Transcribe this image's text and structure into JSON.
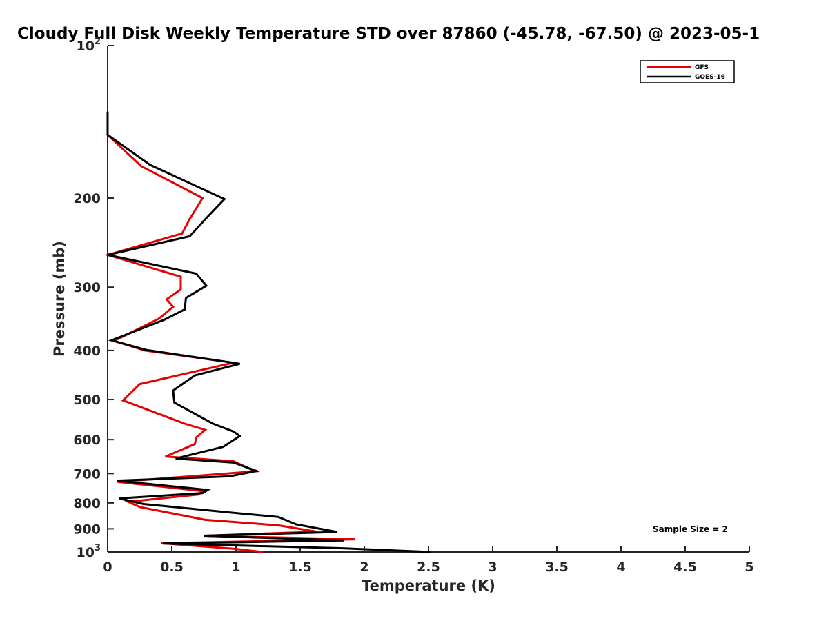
{
  "chart_data": {
    "type": "line",
    "title": "Cloudy Full Disk Weekly Temperature STD over 87860 (-45.78, -67.50) @ 2023-05-1",
    "xlabel": "Temperature (K)",
    "ylabel": "Pressure (mb)",
    "xlim": [
      0,
      5
    ],
    "ylim": [
      100,
      1000
    ],
    "y_scale": "log",
    "y_reversed": true,
    "grid": false,
    "x_ticks": [
      0,
      0.5,
      1,
      1.5,
      2,
      2.5,
      3,
      3.5,
      4,
      4.5,
      5
    ],
    "x_tick_labels": [
      "0",
      "0.5",
      "1",
      "1.5",
      "2",
      "2.5",
      "3",
      "3.5",
      "4",
      "4.5",
      "5"
    ],
    "y_ticks": [
      100,
      200,
      300,
      400,
      500,
      600,
      700,
      800,
      900,
      1000
    ],
    "y_tick_labels": [
      {
        "base": "10",
        "sup": "2"
      },
      {
        "base": "200",
        "sup": ""
      },
      {
        "base": "300",
        "sup": ""
      },
      {
        "base": "400",
        "sup": ""
      },
      {
        "base": "500",
        "sup": ""
      },
      {
        "base": "600",
        "sup": ""
      },
      {
        "base": "700",
        "sup": ""
      },
      {
        "base": "800",
        "sup": ""
      },
      {
        "base": "900",
        "sup": ""
      },
      {
        "base": "10",
        "sup": "3"
      }
    ],
    "legend_position": "top-right",
    "annotation": "Sample Size = 2",
    "series": [
      {
        "name": "GFS",
        "color": "#e60000",
        "points": [
          [
            0,
            135
          ],
          [
            0,
            150
          ],
          [
            0.26,
            173
          ],
          [
            0.74,
            200
          ],
          [
            0.64,
            220
          ],
          [
            0.58,
            235
          ],
          [
            0,
            259
          ],
          [
            0.57,
            286
          ],
          [
            0.57,
            303
          ],
          [
            0.46,
            317
          ],
          [
            0.51,
            328
          ],
          [
            0.4,
            346
          ],
          [
            0.05,
            383
          ],
          [
            0.29,
            400
          ],
          [
            0.98,
            423
          ],
          [
            0.25,
            466
          ],
          [
            0.12,
            502
          ],
          [
            0.6,
            558
          ],
          [
            0.76,
            574
          ],
          [
            0.69,
            594
          ],
          [
            0.68,
            612
          ],
          [
            0.45,
            648
          ],
          [
            0.98,
            662
          ],
          [
            1.15,
            693
          ],
          [
            0.08,
            727
          ],
          [
            0.74,
            758
          ],
          [
            0.71,
            770
          ],
          [
            0.16,
            796
          ],
          [
            0.25,
            815
          ],
          [
            0.76,
            864
          ],
          [
            1.33,
            886
          ],
          [
            1.63,
            912
          ],
          [
            0.75,
            929
          ],
          [
            1.93,
            944
          ],
          [
            0.42,
            961
          ],
          [
            0.98,
            985
          ],
          [
            1.21,
            1000
          ]
        ]
      },
      {
        "name": "GOES-16",
        "color": "#000000",
        "points": [
          [
            0,
            135
          ],
          [
            0,
            150
          ],
          [
            0.33,
            172
          ],
          [
            0.91,
            201
          ],
          [
            0.77,
            219
          ],
          [
            0.64,
            238
          ],
          [
            0,
            259
          ],
          [
            0.69,
            282
          ],
          [
            0.77,
            298
          ],
          [
            0.61,
            315
          ],
          [
            0.6,
            332
          ],
          [
            0.44,
            348
          ],
          [
            0.03,
            382
          ],
          [
            0.3,
            399
          ],
          [
            1.03,
            425
          ],
          [
            0.68,
            448
          ],
          [
            0.51,
            480
          ],
          [
            0.52,
            507
          ],
          [
            0.82,
            558
          ],
          [
            0.98,
            578
          ],
          [
            1.03,
            590
          ],
          [
            0.9,
            620
          ],
          [
            0.53,
            654
          ],
          [
            0.98,
            666
          ],
          [
            1.16,
            692
          ],
          [
            0.95,
            709
          ],
          [
            0.07,
            723
          ],
          [
            0.78,
            754
          ],
          [
            0.74,
            765
          ],
          [
            0.09,
            784
          ],
          [
            0.28,
            804
          ],
          [
            1.01,
            838
          ],
          [
            1.33,
            853
          ],
          [
            1.47,
            882
          ],
          [
            1.79,
            913
          ],
          [
            0.75,
            929
          ],
          [
            1.84,
            949
          ],
          [
            0.43,
            962
          ],
          [
            1.81,
            983
          ],
          [
            2.52,
            1000
          ]
        ]
      }
    ]
  }
}
